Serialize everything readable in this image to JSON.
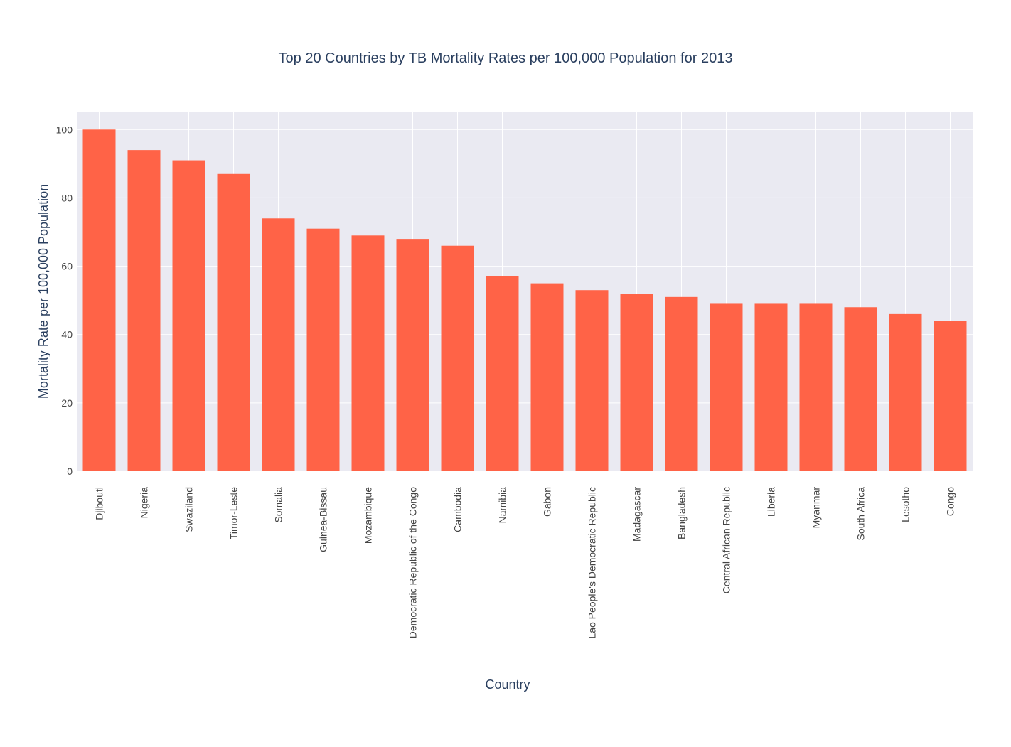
{
  "chart_data": {
    "type": "bar",
    "title": "Top 20 Countries by TB Mortality Rates per 100,000 Population for 2013",
    "x_label": "Country",
    "y_label": "Mortality Rate per 100,000 Population",
    "categories": [
      "Djibouti",
      "Nigeria",
      "Swaziland",
      "Timor-Leste",
      "Somalia",
      "Guinea-Bissau",
      "Mozambique",
      "Democratic Republic of the Congo",
      "Cambodia",
      "Namibia",
      "Gabon",
      "Lao People's Democratic Republic",
      "Madagascar",
      "Bangladesh",
      "Central African Republic",
      "Liberia",
      "Myanmar",
      "South Africa",
      "Lesotho",
      "Congo"
    ],
    "values": [
      100,
      94,
      91,
      87,
      74,
      71,
      69,
      68,
      66,
      57,
      55,
      53,
      52,
      51,
      49,
      49,
      49,
      48,
      46,
      44
    ],
    "color": "#ff6347",
    "ylim": [
      0,
      105.26
    ],
    "yticks": [
      0,
      20,
      40,
      60,
      80,
      100
    ],
    "grid": true
  }
}
